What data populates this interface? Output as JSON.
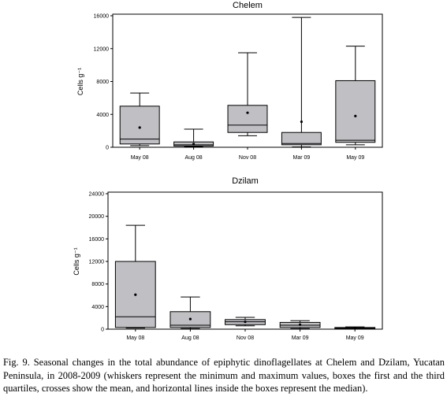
{
  "caption": "Fig. 9. Seasonal changes in the total abundance of epiphytic dinoflagellates at Chelem and Dzilam, Yucatan Peninsula, in 2008-2009 (whiskers represent the minimum and maximum values, boxes the first and the third quartiles, crosses show the mean, and horizontal lines inside the boxes represent the median).",
  "chart_data": [
    {
      "type": "box",
      "title": "Chelem",
      "ylabel": "Cells g⁻¹",
      "ylim": [
        0,
        16000
      ],
      "yticks": [
        0,
        4000,
        8000,
        12000,
        16000
      ],
      "categories": [
        "May 08",
        "Aug 08",
        "Nov 08",
        "Mar 09",
        "May 09"
      ],
      "boxes": [
        {
          "min": 200,
          "q1": 400,
          "median": 1000,
          "q3": 5000,
          "max": 6600,
          "mean": 2400
        },
        {
          "min": 100,
          "q1": 150,
          "median": 300,
          "q3": 650,
          "max": 2200,
          "mean": 400
        },
        {
          "min": 1400,
          "q1": 1800,
          "median": 2700,
          "q3": 5100,
          "max": 11500,
          "mean": 4200
        },
        {
          "min": 50,
          "q1": 300,
          "median": 450,
          "q3": 1800,
          "max": 15800,
          "mean": 3100
        },
        {
          "min": 300,
          "q1": 600,
          "median": 850,
          "q3": 8100,
          "max": 12300,
          "mean": 3800
        }
      ]
    },
    {
      "type": "box",
      "title": "Dzilam",
      "ylabel": "Cells g⁻¹",
      "ylim": [
        0,
        24000
      ],
      "yticks": [
        0,
        4000,
        8000,
        12000,
        16000,
        20000,
        24000
      ],
      "categories": [
        "May 08",
        "Aug 08",
        "Nov 08",
        "Mar 09",
        "May 09"
      ],
      "boxes": [
        {
          "min": 200,
          "q1": 300,
          "median": 2200,
          "q3": 12000,
          "max": 18400,
          "mean": 6100
        },
        {
          "min": 100,
          "q1": 300,
          "median": 700,
          "q3": 3100,
          "max": 5700,
          "mean": 1800
        },
        {
          "min": 600,
          "q1": 800,
          "median": 1300,
          "q3": 1700,
          "max": 2100,
          "mean": 1300
        },
        {
          "min": 100,
          "q1": 300,
          "median": 700,
          "q3": 1200,
          "max": 1500,
          "mean": 800
        },
        {
          "min": 0,
          "q1": 100,
          "median": 150,
          "q3": 300,
          "max": 400,
          "mean": 200
        }
      ]
    }
  ]
}
